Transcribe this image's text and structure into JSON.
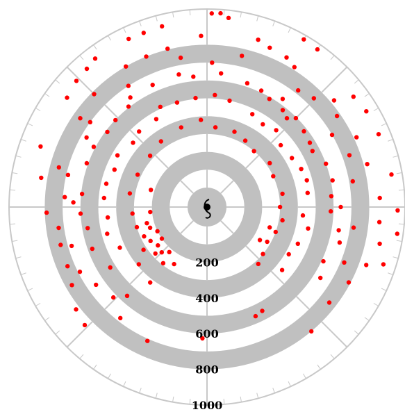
{
  "chart_data": {
    "type": "scatter",
    "coordinate_system": "polar",
    "title": "",
    "r_range": [
      0,
      1000
    ],
    "r_ticks": [
      "200",
      "400",
      "600",
      "800",
      "1000"
    ],
    "r_tick_values": [
      200,
      400,
      600,
      800,
      1000
    ],
    "theta_ticks_deg": [
      0,
      45,
      90,
      135,
      180,
      225,
      270,
      315
    ],
    "minor_tick_step_deg": 5,
    "grid": true,
    "band_color": "#c0c0c0",
    "point_color": "#ff0000",
    "series": [
      {
        "points": [
          {
            "theta": 88.6,
            "r": 976
          },
          {
            "theta": 86.0,
            "r": 979
          },
          {
            "theta": 83.5,
            "r": 957
          },
          {
            "theta": 104.0,
            "r": 934
          },
          {
            "theta": 110.0,
            "r": 929
          },
          {
            "theta": 115.0,
            "r": 930
          },
          {
            "theta": 127.0,
            "r": 932
          },
          {
            "theta": 131.0,
            "r": 917
          },
          {
            "theta": 136.0,
            "r": 908
          },
          {
            "theta": 142.0,
            "r": 886
          },
          {
            "theta": 160.0,
            "r": 883
          },
          {
            "theta": 170.0,
            "r": 834
          },
          {
            "theta": 182.0,
            "r": 790
          },
          {
            "theta": 188.0,
            "r": 730
          },
          {
            "theta": 194.5,
            "r": 738
          },
          {
            "theta": 203.0,
            "r": 740
          },
          {
            "theta": 210.0,
            "r": 765
          },
          {
            "theta": 218.0,
            "r": 822
          },
          {
            "theta": 224.0,
            "r": 843
          },
          {
            "theta": 60.0,
            "r": 975
          },
          {
            "theta": 55.0,
            "r": 969
          },
          {
            "theta": 37.0,
            "r": 918
          },
          {
            "theta": 31.0,
            "r": 932
          },
          {
            "theta": 23.0,
            "r": 935
          },
          {
            "theta": 10.0,
            "r": 940
          },
          {
            "theta": -1.0,
            "r": 959
          },
          {
            "theta": -8.0,
            "r": 967
          },
          {
            "theta": -18.0,
            "r": 930
          },
          {
            "theta": 92.0,
            "r": 850
          },
          {
            "theta": 73.0,
            "r": 871
          },
          {
            "theta": 68.5,
            "r": 850
          },
          {
            "theta": 62.0,
            "r": 840
          },
          {
            "theta": 58.0,
            "r": 815
          },
          {
            "theta": 104.0,
            "r": 805
          },
          {
            "theta": 112.0,
            "r": 800
          },
          {
            "theta": 120.0,
            "r": 800
          },
          {
            "theta": 135.0,
            "r": 785
          },
          {
            "theta": 145.0,
            "r": 758
          },
          {
            "theta": 167.0,
            "r": 690
          },
          {
            "theta": 176.0,
            "r": 690
          },
          {
            "theta": 165.0,
            "r": 750
          },
          {
            "theta": 40.0,
            "r": 820
          },
          {
            "theta": 35.0,
            "r": 780
          },
          {
            "theta": 25.0,
            "r": 815
          },
          {
            "theta": 15.0,
            "r": 820
          },
          {
            "theta": 3.0,
            "r": 860
          },
          {
            "theta": -5.0,
            "r": 860
          },
          {
            "theta": -12.0,
            "r": 880
          },
          {
            "theta": -20.0,
            "r": 840
          },
          {
            "theta": -28.0,
            "r": 790
          },
          {
            "theta": 20.0,
            "r": 740
          },
          {
            "theta": 45.5,
            "r": 745
          },
          {
            "theta": 102.0,
            "r": 650
          },
          {
            "theta": 96.0,
            "r": 625
          },
          {
            "theta": 84.0,
            "r": 644
          },
          {
            "theta": 114.0,
            "r": 640
          },
          {
            "theta": 125.0,
            "r": 640
          },
          {
            "theta": 128.0,
            "r": 605
          },
          {
            "theta": 136.5,
            "r": 598
          },
          {
            "theta": 143.0,
            "r": 590
          },
          {
            "theta": 152.0,
            "r": 610
          },
          {
            "theta": 160.0,
            "r": 608
          },
          {
            "theta": 174.0,
            "r": 595
          },
          {
            "theta": 183.0,
            "r": 600
          },
          {
            "theta": 190.0,
            "r": 570
          },
          {
            "theta": 200.0,
            "r": 575
          },
          {
            "theta": 212.0,
            "r": 530
          },
          {
            "theta": 228.0,
            "r": 560
          },
          {
            "theta": 246.0,
            "r": 712
          },
          {
            "theta": 268.0,
            "r": 627
          },
          {
            "theta": 72.0,
            "r": 620
          },
          {
            "theta": 65.0,
            "r": 610
          },
          {
            "theta": 60.0,
            "r": 590
          },
          {
            "theta": 55.0,
            "r": 630
          },
          {
            "theta": 52.0,
            "r": 580
          },
          {
            "theta": 48.0,
            "r": 560
          },
          {
            "theta": 45.0,
            "r": 595
          },
          {
            "theta": 38.0,
            "r": 580
          },
          {
            "theta": 32.0,
            "r": 570
          },
          {
            "theta": 28.0,
            "r": 560
          },
          {
            "theta": 20.0,
            "r": 600
          },
          {
            "theta": 12.0,
            "r": 610
          },
          {
            "theta": 5.0,
            "r": 590
          },
          {
            "theta": -2.0,
            "r": 585
          },
          {
            "theta": -10.0,
            "r": 640
          },
          {
            "theta": -15.0,
            "r": 660
          },
          {
            "theta": -25.0,
            "r": 610
          },
          {
            "theta": -32.0,
            "r": 640
          },
          {
            "theta": 0.0,
            "r": 640
          },
          {
            "theta": 96.0,
            "r": 505
          },
          {
            "theta": 86.0,
            "r": 520
          },
          {
            "theta": 78.0,
            "r": 500
          },
          {
            "theta": 106.0,
            "r": 500
          },
          {
            "theta": 115.0,
            "r": 510
          },
          {
            "theta": 120.0,
            "r": 460
          },
          {
            "theta": 132.0,
            "r": 460
          },
          {
            "theta": 139.0,
            "r": 440
          },
          {
            "theta": 150.0,
            "r": 470
          },
          {
            "theta": 158.0,
            "r": 450
          },
          {
            "theta": 167.0,
            "r": 470
          },
          {
            "theta": 175.0,
            "r": 470
          },
          {
            "theta": 186.0,
            "r": 450
          },
          {
            "theta": 195.0,
            "r": 470
          },
          {
            "theta": 205.0,
            "r": 430
          },
          {
            "theta": 220.0,
            "r": 390
          },
          {
            "theta": 233.0,
            "r": 420
          },
          {
            "theta": 64.0,
            "r": 470
          },
          {
            "theta": 56.0,
            "r": 450
          },
          {
            "theta": 48.0,
            "r": 470
          },
          {
            "theta": 40.0,
            "r": 430
          },
          {
            "theta": 30.0,
            "r": 440
          },
          {
            "theta": 22.0,
            "r": 460
          },
          {
            "theta": 15.0,
            "r": 470
          },
          {
            "theta": 8.0,
            "r": 460
          },
          {
            "theta": -5.0,
            "r": 430
          },
          {
            "theta": -12.0,
            "r": 470
          },
          {
            "theta": -22.0,
            "r": 440
          },
          {
            "theta": -30.0,
            "r": 420
          },
          {
            "theta": -40.0,
            "r": 440
          },
          {
            "theta": -62.0,
            "r": 550
          },
          {
            "theta": -66.0,
            "r": 560
          },
          {
            "theta": 94.0,
            "r": 380
          },
          {
            "theta": 84.0,
            "r": 340
          },
          {
            "theta": 108.0,
            "r": 360
          },
          {
            "theta": 125.0,
            "r": 340
          },
          {
            "theta": 138.0,
            "r": 320
          },
          {
            "theta": 155.0,
            "r": 320
          },
          {
            "theta": 170.0,
            "r": 330
          },
          {
            "theta": 185.0,
            "r": 310
          },
          {
            "theta": 196.0,
            "r": 300
          },
          {
            "theta": 205.0,
            "r": 280
          },
          {
            "theta": 211.0,
            "r": 260
          },
          {
            "theta": 218.0,
            "r": 240
          },
          {
            "theta": 230.0,
            "r": 220
          },
          {
            "theta": 240.0,
            "r": 260
          },
          {
            "theta": 70.0,
            "r": 340
          },
          {
            "theta": 60.0,
            "r": 320
          },
          {
            "theta": 50.0,
            "r": 300
          },
          {
            "theta": 35.0,
            "r": 320
          },
          {
            "theta": 25.0,
            "r": 300
          },
          {
            "theta": 10.0,
            "r": 320
          },
          {
            "theta": 0.0,
            "r": 300
          },
          {
            "theta": -10.0,
            "r": 320
          },
          {
            "theta": -20.0,
            "r": 300
          },
          {
            "theta": -30.0,
            "r": 280
          },
          {
            "theta": -40.0,
            "r": 300
          },
          {
            "theta": -48.0,
            "r": 320
          },
          {
            "theta": -18.0,
            "r": 260
          },
          {
            "theta": -32.0,
            "r": 240
          },
          {
            "theta": 185.0,
            "r": 210
          },
          {
            "theta": 200.0,
            "r": 230
          },
          {
            "theta": 163.0,
            "r": 220
          },
          {
            "theta": 215.0,
            "r": 200
          },
          {
            "theta": 225.0,
            "r": 250
          },
          {
            "theta": 195.0,
            "r": 240
          },
          {
            "theta": 206.0,
            "r": 200
          },
          {
            "theta": 232.0,
            "r": 290
          },
          {
            "theta": 214.0,
            "r": 320
          },
          {
            "theta": 222.0,
            "r": 280
          },
          {
            "theta": 144.0,
            "r": 700
          },
          {
            "theta": 150.0,
            "r": 670
          },
          {
            "theta": 178.0,
            "r": 640
          },
          {
            "theta": 196.0,
            "r": 680
          },
          {
            "theta": 207.0,
            "r": 690
          },
          {
            "theta": 215.0,
            "r": 650
          },
          {
            "theta": 224.0,
            "r": 620
          },
          {
            "theta": 232.0,
            "r": 680
          },
          {
            "theta": 100.0,
            "r": 740
          },
          {
            "theta": 123.0,
            "r": 700
          },
          {
            "theta": 88.0,
            "r": 700
          },
          {
            "theta": 77.0,
            "r": 760
          },
          {
            "theta": 52.0,
            "r": 720
          },
          {
            "theta": 30.0,
            "r": 700
          },
          {
            "theta": 10.0,
            "r": 720
          },
          {
            "theta": -8.0,
            "r": 720
          },
          {
            "theta": -22.0,
            "r": 720
          },
          {
            "theta": -38.0,
            "r": 760
          },
          {
            "theta": -50.0,
            "r": 800
          }
        ]
      }
    ]
  }
}
